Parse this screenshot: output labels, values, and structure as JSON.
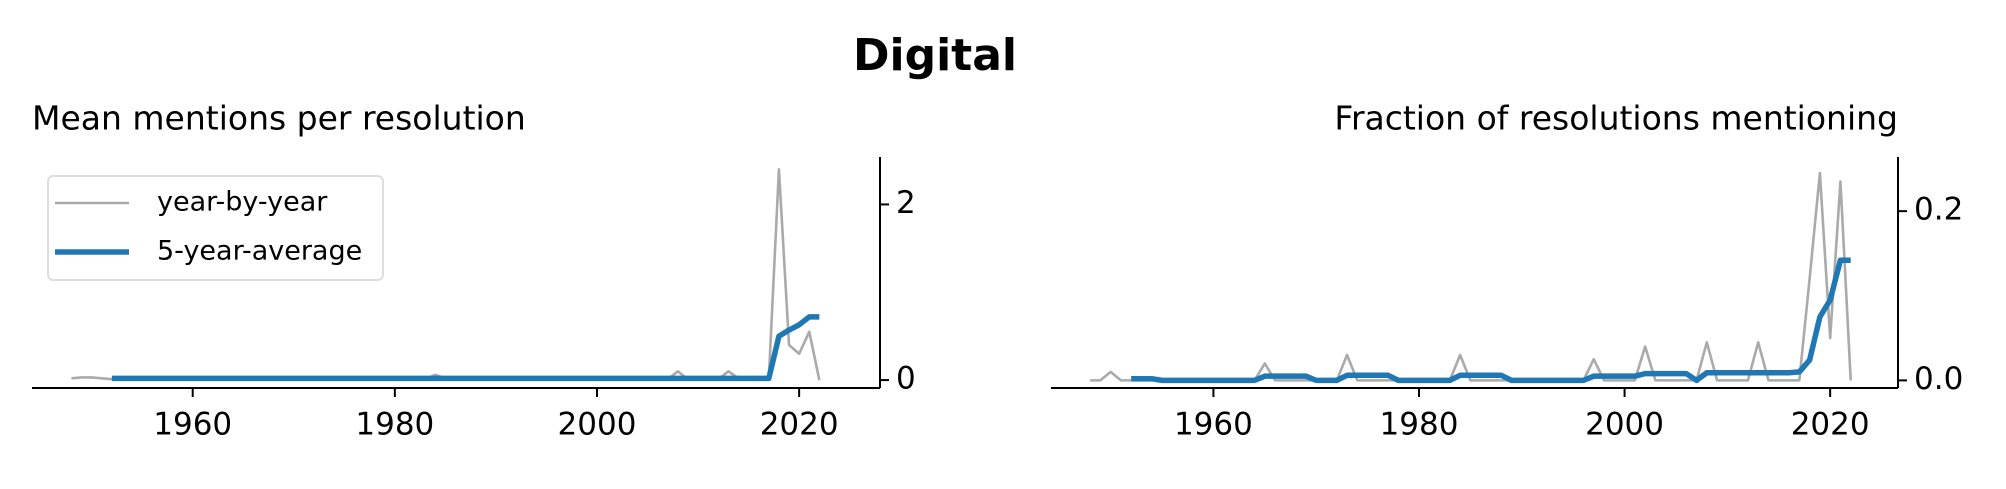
{
  "title": "Digital",
  "chart_data": [
    {
      "type": "line",
      "title": "Mean mentions per resolution",
      "yaxis_position": "right",
      "legend": "upper left",
      "x": [
        1948,
        1949,
        1950,
        1951,
        1952,
        1953,
        1954,
        1955,
        1956,
        1957,
        1958,
        1959,
        1960,
        1961,
        1962,
        1963,
        1964,
        1965,
        1966,
        1967,
        1968,
        1969,
        1970,
        1971,
        1972,
        1973,
        1974,
        1975,
        1976,
        1977,
        1978,
        1979,
        1980,
        1981,
        1982,
        1983,
        1984,
        1985,
        1986,
        1987,
        1988,
        1989,
        1990,
        1991,
        1992,
        1993,
        1994,
        1995,
        1996,
        1997,
        1998,
        1999,
        2000,
        2001,
        2002,
        2003,
        2004,
        2005,
        2006,
        2007,
        2008,
        2009,
        2010,
        2011,
        2012,
        2013,
        2014,
        2015,
        2016,
        2017,
        2018,
        2019,
        2020,
        2021,
        2022
      ],
      "xlim": [
        1944.1,
        2028
      ],
      "xticks": [
        1960,
        1980,
        2000,
        2020
      ],
      "ylim": [
        -0.09,
        2.54
      ],
      "yticks": [
        0,
        2
      ],
      "series": [
        {
          "name": "year-by-year",
          "color": "#aaaaaa",
          "values": [
            0.02,
            0.03,
            0.03,
            0.02,
            0.01,
            0.01,
            0.01,
            0.01,
            0.01,
            0.01,
            0.01,
            0.01,
            0.01,
            0.01,
            0.01,
            0.01,
            0.01,
            0.01,
            0.01,
            0.01,
            0.02,
            0.02,
            0.01,
            0.01,
            0.02,
            0.03,
            0.02,
            0.02,
            0.02,
            0.02,
            0.01,
            0.01,
            0.01,
            0.01,
            0.01,
            0.01,
            0.06,
            0.02,
            0.02,
            0.02,
            0.02,
            0.01,
            0.01,
            0.01,
            0.01,
            0.01,
            0.01,
            0.01,
            0.01,
            0.01,
            0.01,
            0.01,
            0.01,
            0.01,
            0.03,
            0.01,
            0.01,
            0.01,
            0.01,
            0.01,
            0.1,
            0.01,
            0.01,
            0.01,
            0.01,
            0.1,
            0.02,
            0.02,
            0.02,
            0.02,
            2.4,
            0.4,
            0.3,
            0.55,
            0
          ]
        },
        {
          "name": "5-year-average",
          "color": "#1f77b4",
          "values": [
            null,
            null,
            null,
            null,
            0.02,
            0.02,
            0.02,
            0.02,
            0.02,
            0.02,
            0.02,
            0.02,
            0.02,
            0.02,
            0.02,
            0.02,
            0.02,
            0.02,
            0.02,
            0.02,
            0.02,
            0.02,
            0.02,
            0.02,
            0.02,
            0.02,
            0.02,
            0.02,
            0.02,
            0.02,
            0.02,
            0.02,
            0.02,
            0.02,
            0.02,
            0.02,
            0.02,
            0.02,
            0.02,
            0.02,
            0.02,
            0.02,
            0.02,
            0.02,
            0.02,
            0.02,
            0.02,
            0.02,
            0.02,
            0.02,
            0.02,
            0.02,
            0.02,
            0.02,
            0.02,
            0.02,
            0.02,
            0.02,
            0.02,
            0.02,
            0.02,
            0.02,
            0.02,
            0.02,
            0.02,
            0.02,
            0.02,
            0.02,
            0.02,
            0.02,
            0.5,
            0.57,
            0.63,
            0.72,
            0.72
          ]
        }
      ]
    },
    {
      "type": "line",
      "title": "Fraction of resolutions mentioning",
      "yaxis_position": "right",
      "x": [
        1948,
        1949,
        1950,
        1951,
        1952,
        1953,
        1954,
        1955,
        1956,
        1957,
        1958,
        1959,
        1960,
        1961,
        1962,
        1963,
        1964,
        1965,
        1966,
        1967,
        1968,
        1969,
        1970,
        1971,
        1972,
        1973,
        1974,
        1975,
        1976,
        1977,
        1978,
        1979,
        1980,
        1981,
        1982,
        1983,
        1984,
        1985,
        1986,
        1987,
        1988,
        1989,
        1990,
        1991,
        1992,
        1993,
        1994,
        1995,
        1996,
        1997,
        1998,
        1999,
        2000,
        2001,
        2002,
        2003,
        2004,
        2005,
        2006,
        2007,
        2008,
        2009,
        2010,
        2011,
        2012,
        2013,
        2014,
        2015,
        2016,
        2017,
        2018,
        2019,
        2020,
        2021,
        2022
      ],
      "xlim": [
        1944.2,
        2026.6
      ],
      "xticks": [
        1960,
        1980,
        2000,
        2020
      ],
      "ylim": [
        -0.009,
        0.264
      ],
      "yticks": [
        {
          "value": 0,
          "label": "0.0"
        },
        0.2
      ],
      "series": [
        {
          "color": "#aaaaaa",
          "values": [
            0,
            0,
            0.01,
            0,
            0,
            0,
            0,
            0,
            0,
            0,
            0,
            0,
            0,
            0,
            0,
            0,
            0,
            0.02,
            0,
            0,
            0,
            0,
            0,
            0,
            0,
            0.03,
            0,
            0,
            0,
            0,
            0,
            0,
            0,
            0,
            0,
            0,
            0.03,
            0,
            0,
            0,
            0,
            0,
            0,
            0,
            0,
            0,
            0,
            0,
            0,
            0.025,
            0,
            0,
            0,
            0,
            0.04,
            0,
            0,
            0,
            0,
            0,
            0.045,
            0,
            0,
            0,
            0,
            0.045,
            0,
            0,
            0,
            0,
            0.12,
            0.245,
            0.05,
            0.235,
            0
          ]
        },
        {
          "color": "#1f77b4",
          "values": [
            null,
            null,
            null,
            null,
            0.002,
            0.002,
            0.002,
            0,
            0,
            0,
            0,
            0,
            0,
            0,
            0,
            0,
            0,
            0.005,
            0.005,
            0.005,
            0.005,
            0.005,
            0,
            0,
            0,
            0.006,
            0.006,
            0.006,
            0.006,
            0.006,
            0,
            0,
            0,
            0,
            0,
            0,
            0.006,
            0.006,
            0.006,
            0.006,
            0.006,
            0,
            0,
            0,
            0,
            0,
            0,
            0,
            0,
            0.005,
            0.005,
            0.005,
            0.005,
            0.005,
            0.008,
            0.008,
            0.008,
            0.008,
            0.008,
            0,
            0.009,
            0.009,
            0.009,
            0.009,
            0.009,
            0.009,
            0.009,
            0.009,
            0.009,
            0.01,
            0.024,
            0.075,
            0.095,
            0.142,
            0.142
          ]
        }
      ]
    }
  ]
}
